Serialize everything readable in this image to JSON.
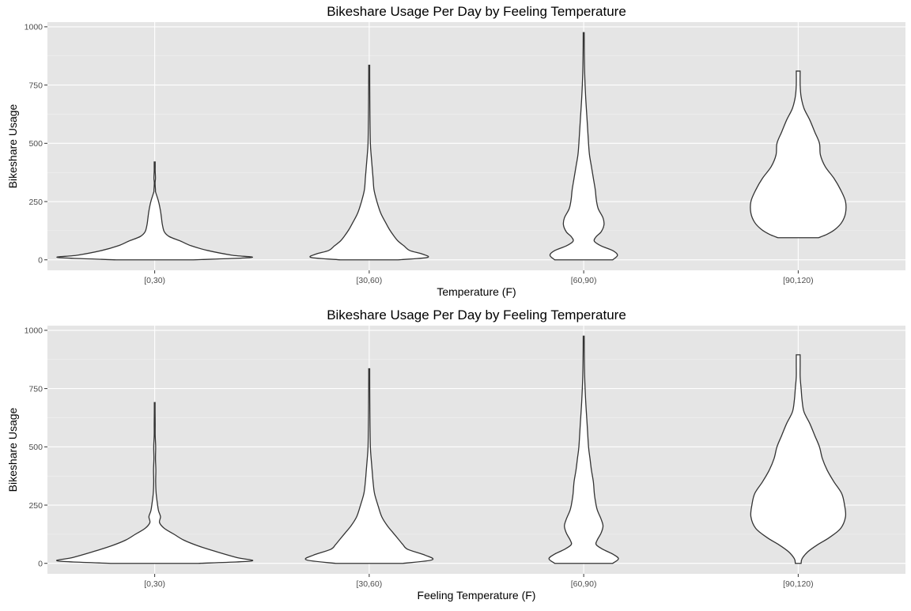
{
  "chart_data": [
    {
      "type": "violin",
      "title": "Bikeshare Usage Per Day by Feeling Temperature",
      "xlabel": "Temperature (F)",
      "ylabel": "Bikeshare Usage",
      "categories": [
        "[0,30)",
        "[30,60)",
        "[60,90)",
        "[90,120)"
      ],
      "ylim": [
        -45,
        1020
      ],
      "yticks": [
        0,
        250,
        500,
        750,
        1000
      ],
      "ytick_labels": [
        "0",
        "250",
        "500",
        "750",
        "1000"
      ],
      "grid": true,
      "legend": "none",
      "violins": [
        {
          "category": "[0,30)",
          "min": 0,
          "max": 420,
          "profile": [
            [
              0,
              0.4
            ],
            [
              10,
              1.0
            ],
            [
              20,
              0.8
            ],
            [
              40,
              0.55
            ],
            [
              60,
              0.38
            ],
            [
              80,
              0.27
            ],
            [
              100,
              0.15
            ],
            [
              120,
              0.1
            ],
            [
              150,
              0.08
            ],
            [
              180,
              0.07
            ],
            [
              210,
              0.06
            ],
            [
              250,
              0.04
            ],
            [
              290,
              0.01
            ],
            [
              300,
              0.008
            ],
            [
              330,
              0.004
            ],
            [
              350,
              0.008
            ],
            [
              380,
              0.005
            ],
            [
              400,
              0.005
            ],
            [
              420,
              0.005
            ]
          ]
        },
        {
          "category": "[30,60)",
          "min": 0,
          "max": 835,
          "profile": [
            [
              0,
              0.3
            ],
            [
              10,
              0.6
            ],
            [
              25,
              0.55
            ],
            [
              40,
              0.42
            ],
            [
              60,
              0.36
            ],
            [
              80,
              0.3
            ],
            [
              100,
              0.26
            ],
            [
              130,
              0.21
            ],
            [
              160,
              0.17
            ],
            [
              200,
              0.12
            ],
            [
              250,
              0.08
            ],
            [
              300,
              0.05
            ],
            [
              350,
              0.04
            ],
            [
              400,
              0.03
            ],
            [
              450,
              0.02
            ],
            [
              500,
              0.012
            ],
            [
              600,
              0.008
            ],
            [
              700,
              0.006
            ],
            [
              800,
              0.005
            ],
            [
              835,
              0.005
            ]
          ]
        },
        {
          "category": "[60,90)",
          "min": 0,
          "max": 975,
          "profile": [
            [
              0,
              0.3
            ],
            [
              20,
              0.35
            ],
            [
              40,
              0.3
            ],
            [
              60,
              0.18
            ],
            [
              80,
              0.11
            ],
            [
              100,
              0.13
            ],
            [
              120,
              0.18
            ],
            [
              150,
              0.21
            ],
            [
              180,
              0.2
            ],
            [
              220,
              0.15
            ],
            [
              260,
              0.13
            ],
            [
              300,
              0.12
            ],
            [
              350,
              0.1
            ],
            [
              400,
              0.08
            ],
            [
              450,
              0.06
            ],
            [
              500,
              0.05
            ],
            [
              600,
              0.035
            ],
            [
              700,
              0.02
            ],
            [
              800,
              0.01
            ],
            [
              900,
              0.006
            ],
            [
              975,
              0.005
            ]
          ]
        },
        {
          "category": "[90,120)",
          "min": 95,
          "max": 810,
          "profile": [
            [
              95,
              0.21
            ],
            [
              110,
              0.3
            ],
            [
              130,
              0.38
            ],
            [
              160,
              0.45
            ],
            [
              200,
              0.49
            ],
            [
              250,
              0.49
            ],
            [
              300,
              0.44
            ],
            [
              350,
              0.37
            ],
            [
              400,
              0.28
            ],
            [
              450,
              0.23
            ],
            [
              500,
              0.22
            ],
            [
              550,
              0.17
            ],
            [
              600,
              0.12
            ],
            [
              650,
              0.06
            ],
            [
              700,
              0.03
            ],
            [
              750,
              0.02
            ],
            [
              810,
              0.02
            ]
          ]
        }
      ]
    },
    {
      "type": "violin",
      "title": "Bikeshare Usage Per Day by Feeling Temperature",
      "xlabel": "Feeling Temperature (F)",
      "ylabel": "Bikeshare Usage",
      "categories": [
        "[0,30)",
        "[30,60)",
        "[60,90)",
        "[90,120)"
      ],
      "ylim": [
        -45,
        1020
      ],
      "yticks": [
        0,
        250,
        500,
        750,
        1000
      ],
      "ytick_labels": [
        "0",
        "250",
        "500",
        "750",
        "1000"
      ],
      "grid": true,
      "legend": "none",
      "violins": [
        {
          "category": "[0,30)",
          "min": 0,
          "max": 690,
          "profile": [
            [
              0,
              0.45
            ],
            [
              10,
              1.0
            ],
            [
              25,
              0.85
            ],
            [
              50,
              0.64
            ],
            [
              75,
              0.45
            ],
            [
              100,
              0.3
            ],
            [
              125,
              0.2
            ],
            [
              150,
              0.1
            ],
            [
              175,
              0.05
            ],
            [
              200,
              0.06
            ],
            [
              225,
              0.04
            ],
            [
              250,
              0.03
            ],
            [
              300,
              0.015
            ],
            [
              350,
              0.01
            ],
            [
              400,
              0.012
            ],
            [
              450,
              0.008
            ],
            [
              500,
              0.01
            ],
            [
              550,
              0.005
            ],
            [
              600,
              0.005
            ],
            [
              650,
              0.004
            ],
            [
              690,
              0.004
            ]
          ]
        },
        {
          "category": "[30,60)",
          "min": 0,
          "max": 835,
          "profile": [
            [
              0,
              0.35
            ],
            [
              15,
              0.65
            ],
            [
              35,
              0.58
            ],
            [
              60,
              0.4
            ],
            [
              80,
              0.35
            ],
            [
              100,
              0.31
            ],
            [
              130,
              0.25
            ],
            [
              160,
              0.19
            ],
            [
              200,
              0.13
            ],
            [
              250,
              0.09
            ],
            [
              300,
              0.055
            ],
            [
              350,
              0.04
            ],
            [
              400,
              0.03
            ],
            [
              450,
              0.02
            ],
            [
              500,
              0.012
            ],
            [
              600,
              0.008
            ],
            [
              700,
              0.006
            ],
            [
              800,
              0.005
            ],
            [
              835,
              0.005
            ]
          ]
        },
        {
          "category": "[60,90)",
          "min": 0,
          "max": 975,
          "profile": [
            [
              0,
              0.3
            ],
            [
              20,
              0.36
            ],
            [
              40,
              0.3
            ],
            [
              60,
              0.2
            ],
            [
              80,
              0.13
            ],
            [
              100,
              0.14
            ],
            [
              130,
              0.18
            ],
            [
              160,
              0.2
            ],
            [
              190,
              0.18
            ],
            [
              230,
              0.14
            ],
            [
              270,
              0.12
            ],
            [
              300,
              0.11
            ],
            [
              350,
              0.1
            ],
            [
              400,
              0.08
            ],
            [
              450,
              0.065
            ],
            [
              500,
              0.05
            ],
            [
              600,
              0.035
            ],
            [
              700,
              0.02
            ],
            [
              800,
              0.01
            ],
            [
              900,
              0.006
            ],
            [
              975,
              0.005
            ]
          ]
        },
        {
          "category": "[90,120)",
          "min": 0,
          "max": 895,
          "profile": [
            [
              0,
              0.03
            ],
            [
              20,
              0.04
            ],
            [
              50,
              0.1
            ],
            [
              80,
              0.2
            ],
            [
              110,
              0.32
            ],
            [
              150,
              0.44
            ],
            [
              200,
              0.49
            ],
            [
              250,
              0.48
            ],
            [
              300,
              0.45
            ],
            [
              350,
              0.37
            ],
            [
              400,
              0.3
            ],
            [
              450,
              0.25
            ],
            [
              500,
              0.22
            ],
            [
              550,
              0.17
            ],
            [
              600,
              0.12
            ],
            [
              650,
              0.06
            ],
            [
              700,
              0.04
            ],
            [
              750,
              0.03
            ],
            [
              800,
              0.02
            ],
            [
              850,
              0.02
            ],
            [
              895,
              0.02
            ]
          ]
        }
      ]
    }
  ]
}
